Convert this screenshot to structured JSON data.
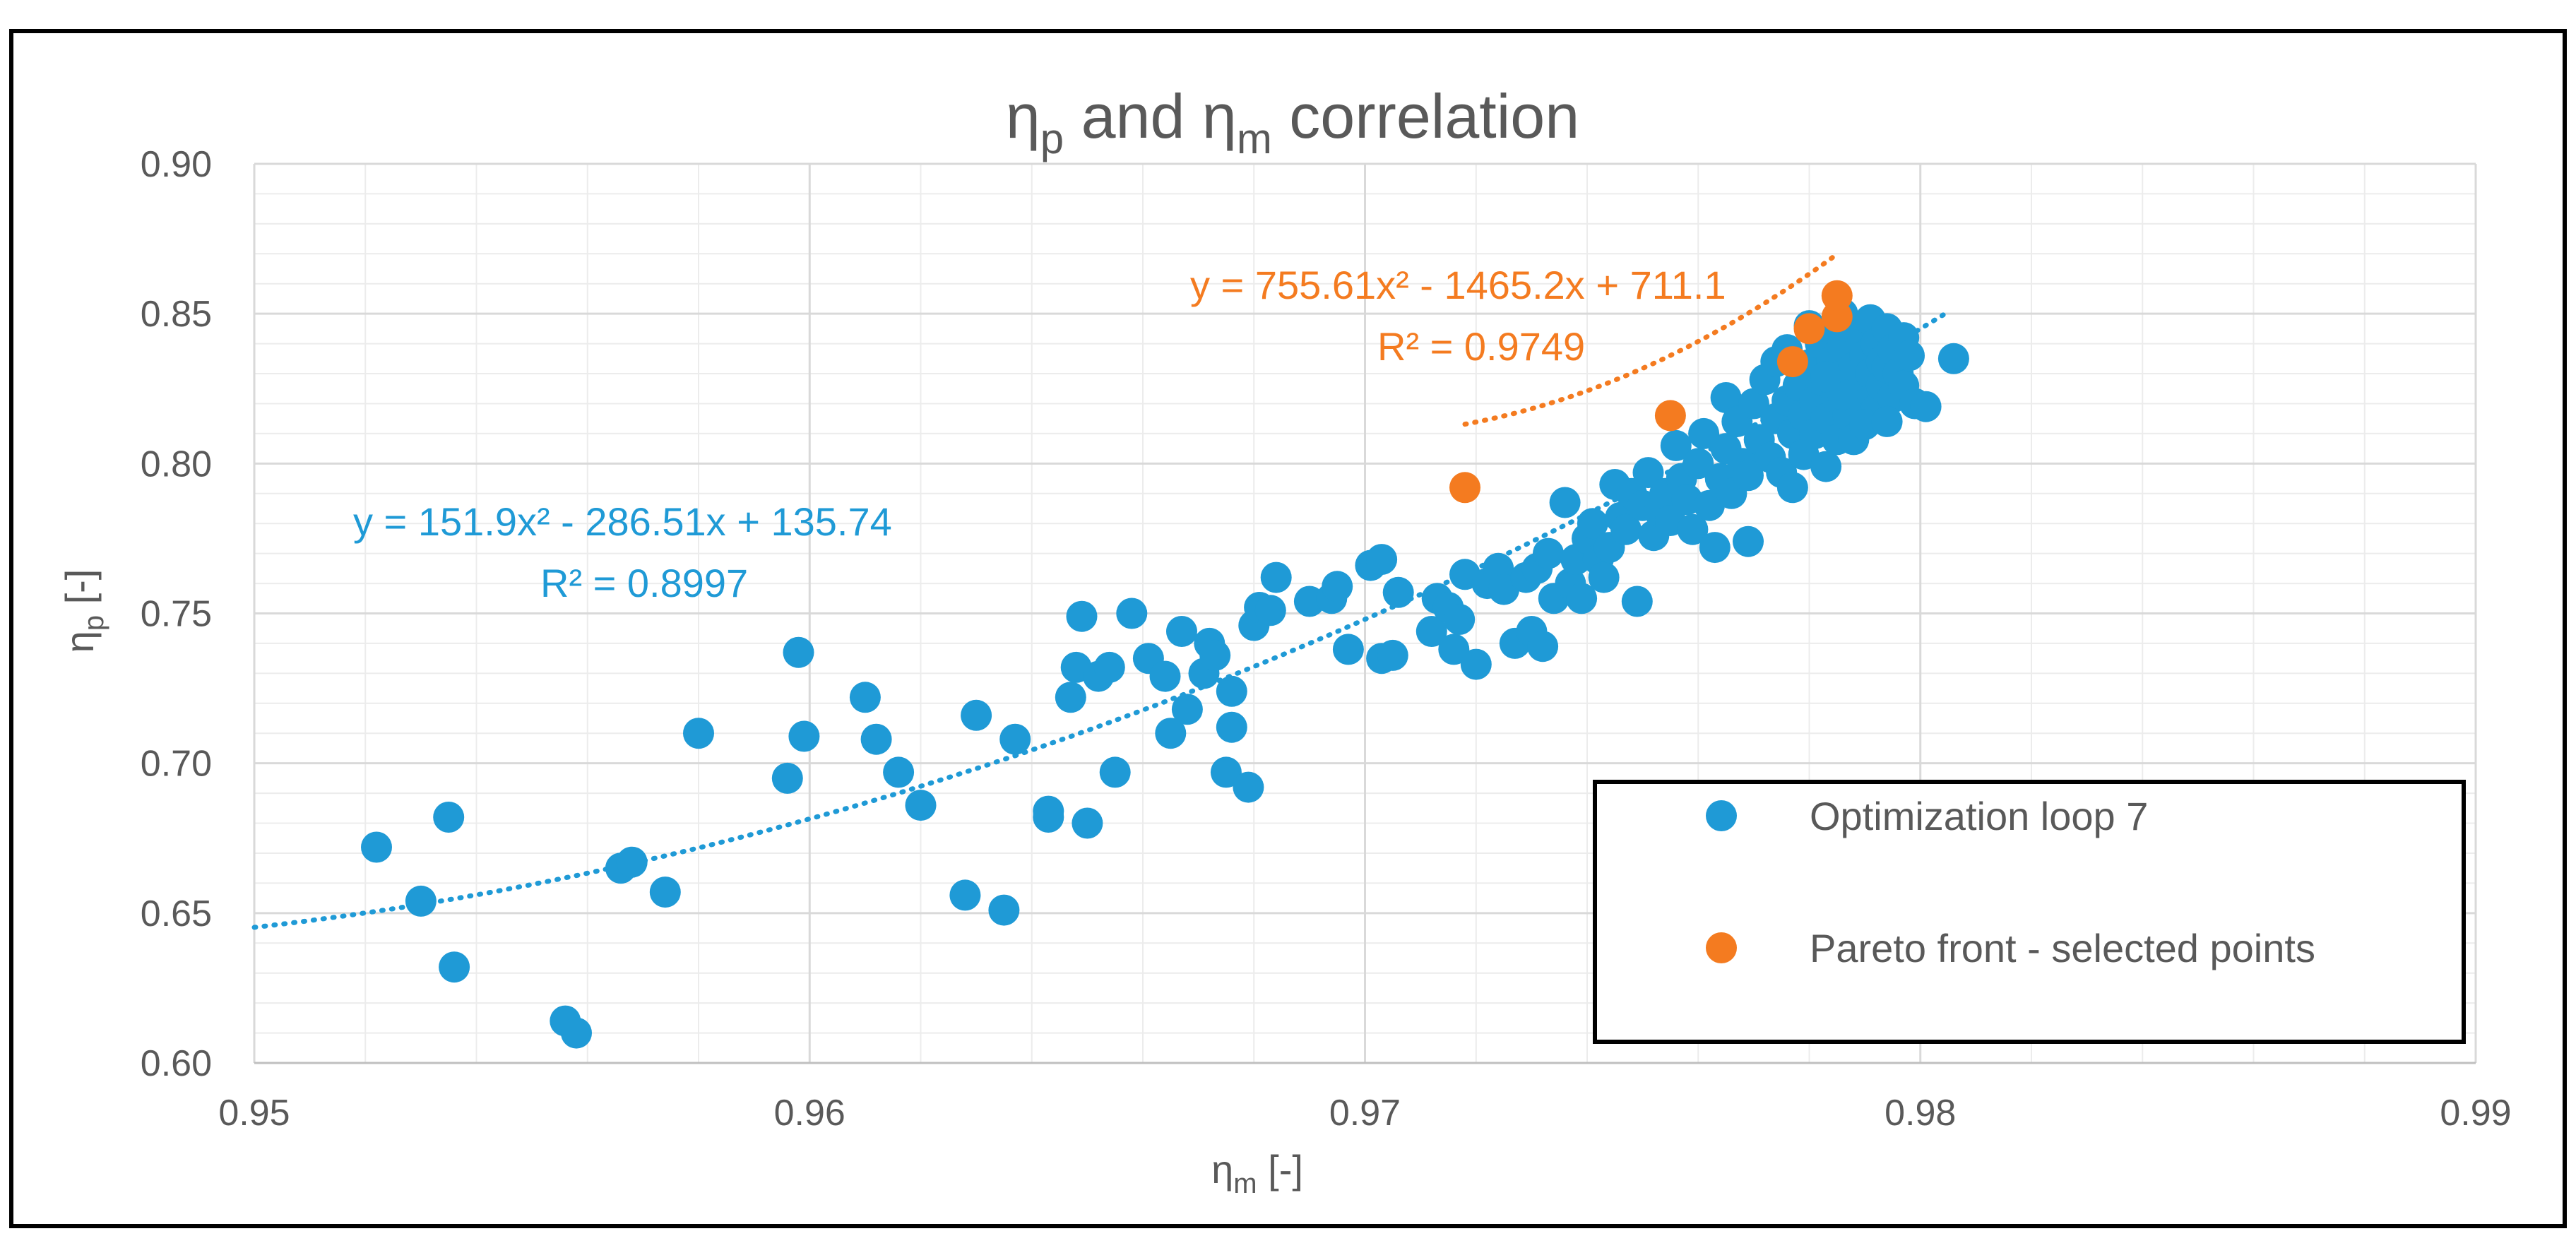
{
  "colors": {
    "blue": "#1f9ad6",
    "orange": "#f47b20",
    "grid_major": "#d9d9d9",
    "grid_minor": "#ececec",
    "text": "#595959"
  },
  "chart_data": {
    "type": "scatter",
    "title": "ηp and ηm correlation",
    "title_parts": {
      "a": "η",
      "a_sub": "p",
      "mid": " and ",
      "b": "η",
      "b_sub": "m",
      "end": " correlation"
    },
    "xlabel": "ηm [-]",
    "xlabel_parts": {
      "sym": "η",
      "sub": "m",
      "unit": " [-]"
    },
    "ylabel": "ηp [-]",
    "ylabel_parts": {
      "sym": "η",
      "sub": "p",
      "unit": " [-]"
    },
    "xlim": [
      0.95,
      0.99
    ],
    "ylim": [
      0.6,
      0.9
    ],
    "x_ticks": [
      "0.95",
      "0.96",
      "0.97",
      "0.98",
      "0.99"
    ],
    "y_ticks": [
      "0.60",
      "0.65",
      "0.70",
      "0.75",
      "0.80",
      "0.85",
      "0.90"
    ],
    "grid": true,
    "legend_position": "bottom-right",
    "series": [
      {
        "name": "Optimization loop 7",
        "color": "#1f9ad6",
        "trendline": {
          "type": "poly2",
          "coef": [
            151.9,
            -286.51,
            135.74
          ],
          "equation": "y = 151.9x² - 286.51x + 135.74",
          "r2": "R² = 0.8997",
          "x_range": [
            0.95,
            0.9805
          ]
        },
        "points": [
          [
            0.9522,
            0.672
          ],
          [
            0.953,
            0.654
          ],
          [
            0.9535,
            0.682
          ],
          [
            0.9536,
            0.632
          ],
          [
            0.9556,
            0.614
          ],
          [
            0.9558,
            0.61
          ],
          [
            0.9566,
            0.665
          ],
          [
            0.9568,
            0.667
          ],
          [
            0.9574,
            0.657
          ],
          [
            0.958,
            0.71
          ],
          [
            0.9596,
            0.695
          ],
          [
            0.9598,
            0.737
          ],
          [
            0.9599,
            0.709
          ],
          [
            0.961,
            0.722
          ],
          [
            0.9612,
            0.708
          ],
          [
            0.9616,
            0.697
          ],
          [
            0.962,
            0.686
          ],
          [
            0.9628,
            0.656
          ],
          [
            0.963,
            0.716
          ],
          [
            0.9635,
            0.651
          ],
          [
            0.9637,
            0.708
          ],
          [
            0.9643,
            0.682
          ],
          [
            0.9643,
            0.684
          ],
          [
            0.9647,
            0.722
          ],
          [
            0.9648,
            0.732
          ],
          [
            0.9649,
            0.749
          ],
          [
            0.965,
            0.68
          ],
          [
            0.9652,
            0.729
          ],
          [
            0.9654,
            0.732
          ],
          [
            0.9655,
            0.697
          ],
          [
            0.9658,
            0.75
          ],
          [
            0.9661,
            0.735
          ],
          [
            0.9664,
            0.729
          ],
          [
            0.9665,
            0.71
          ],
          [
            0.9667,
            0.744
          ],
          [
            0.9668,
            0.718
          ],
          [
            0.9671,
            0.73
          ],
          [
            0.9672,
            0.74
          ],
          [
            0.9673,
            0.736
          ],
          [
            0.9675,
            0.697
          ],
          [
            0.9676,
            0.712
          ],
          [
            0.9676,
            0.724
          ],
          [
            0.9679,
            0.692
          ],
          [
            0.968,
            0.746
          ],
          [
            0.9681,
            0.752
          ],
          [
            0.9683,
            0.751
          ],
          [
            0.9684,
            0.762
          ],
          [
            0.969,
            0.754
          ],
          [
            0.9694,
            0.755
          ],
          [
            0.9695,
            0.759
          ],
          [
            0.9697,
            0.738
          ],
          [
            0.9701,
            0.766
          ],
          [
            0.9703,
            0.768
          ],
          [
            0.9703,
            0.735
          ],
          [
            0.9705,
            0.736
          ],
          [
            0.9706,
            0.757
          ],
          [
            0.9712,
            0.744
          ],
          [
            0.9713,
            0.755
          ],
          [
            0.9715,
            0.752
          ],
          [
            0.9716,
            0.738
          ],
          [
            0.9717,
            0.748
          ],
          [
            0.9718,
            0.763
          ],
          [
            0.972,
            0.733
          ],
          [
            0.9722,
            0.76
          ],
          [
            0.9724,
            0.765
          ],
          [
            0.9725,
            0.758
          ],
          [
            0.9727,
            0.74
          ],
          [
            0.9729,
            0.762
          ],
          [
            0.973,
            0.744
          ],
          [
            0.9731,
            0.765
          ],
          [
            0.9732,
            0.739
          ],
          [
            0.9733,
            0.77
          ],
          [
            0.9734,
            0.755
          ],
          [
            0.9736,
            0.787
          ],
          [
            0.9737,
            0.76
          ],
          [
            0.9738,
            0.768
          ],
          [
            0.9739,
            0.755
          ],
          [
            0.974,
            0.775
          ],
          [
            0.9741,
            0.78
          ],
          [
            0.9742,
            0.768
          ],
          [
            0.9743,
            0.762
          ],
          [
            0.9744,
            0.772
          ],
          [
            0.9745,
            0.793
          ],
          [
            0.9746,
            0.782
          ],
          [
            0.9747,
            0.778
          ],
          [
            0.9748,
            0.79
          ],
          [
            0.9749,
            0.754
          ],
          [
            0.975,
            0.786
          ],
          [
            0.9751,
            0.797
          ],
          [
            0.9752,
            0.776
          ],
          [
            0.9753,
            0.784
          ],
          [
            0.9754,
            0.79
          ],
          [
            0.9755,
            0.781
          ],
          [
            0.9756,
            0.806
          ],
          [
            0.9757,
            0.795
          ],
          [
            0.9758,
            0.788
          ],
          [
            0.9759,
            0.778
          ],
          [
            0.976,
            0.8
          ],
          [
            0.9761,
            0.81
          ],
          [
            0.9762,
            0.786
          ],
          [
            0.9763,
            0.772
          ],
          [
            0.9764,
            0.795
          ],
          [
            0.9765,
            0.822
          ],
          [
            0.9765,
            0.805
          ],
          [
            0.9766,
            0.79
          ],
          [
            0.9767,
            0.814
          ],
          [
            0.9768,
            0.8
          ],
          [
            0.9769,
            0.796
          ],
          [
            0.9769,
            0.774
          ],
          [
            0.977,
            0.82
          ],
          [
            0.9771,
            0.808
          ],
          [
            0.9772,
            0.828
          ],
          [
            0.9773,
            0.802
          ],
          [
            0.9774,
            0.815
          ],
          [
            0.9774,
            0.834
          ],
          [
            0.9775,
            0.797
          ],
          [
            0.9776,
            0.821
          ],
          [
            0.9776,
            0.838
          ],
          [
            0.9777,
            0.81
          ],
          [
            0.9777,
            0.792
          ],
          [
            0.9778,
            0.826
          ],
          [
            0.9779,
            0.816
          ],
          [
            0.9779,
            0.803
          ],
          [
            0.978,
            0.833
          ],
          [
            0.978,
            0.846
          ],
          [
            0.9781,
            0.821
          ],
          [
            0.9781,
            0.81
          ],
          [
            0.9782,
            0.84
          ],
          [
            0.9782,
            0.828
          ],
          [
            0.9783,
            0.799
          ],
          [
            0.9783,
            0.815
          ],
          [
            0.9784,
            0.845
          ],
          [
            0.9784,
            0.834
          ],
          [
            0.9785,
            0.822
          ],
          [
            0.9785,
            0.808
          ],
          [
            0.9786,
            0.85
          ],
          [
            0.9786,
            0.839
          ],
          [
            0.9787,
            0.827
          ],
          [
            0.9787,
            0.816
          ],
          [
            0.9788,
            0.845
          ],
          [
            0.9788,
            0.832
          ],
          [
            0.9789,
            0.82
          ],
          [
            0.9789,
            0.843
          ],
          [
            0.979,
            0.836
          ],
          [
            0.979,
            0.825
          ],
          [
            0.9791,
            0.848
          ],
          [
            0.9791,
            0.83
          ],
          [
            0.9792,
            0.818
          ],
          [
            0.9792,
            0.84
          ],
          [
            0.9793,
            0.834
          ],
          [
            0.9793,
            0.826
          ],
          [
            0.9794,
            0.845
          ],
          [
            0.9794,
            0.832
          ],
          [
            0.9795,
            0.838
          ],
          [
            0.9795,
            0.822
          ],
          [
            0.9796,
            0.83
          ],
          [
            0.9797,
            0.842
          ],
          [
            0.9797,
            0.826
          ],
          [
            0.9798,
            0.836
          ],
          [
            0.9799,
            0.82
          ],
          [
            0.9801,
            0.819
          ],
          [
            0.9806,
            0.835
          ],
          [
            0.9788,
            0.808
          ],
          [
            0.979,
            0.813
          ],
          [
            0.9794,
            0.814
          ],
          [
            0.9786,
            0.823
          ],
          [
            0.9783,
            0.829
          ]
        ]
      },
      {
        "name": "Pareto front - selected points",
        "color": "#f47b20",
        "trendline": {
          "type": "poly2",
          "coef": [
            755.61,
            -1465.2,
            711.1
          ],
          "equation": "y = 755.61x² - 1465.2x + 711.1",
          "r2": "R² = 0.9749",
          "x_range": [
            0.9718,
            0.9785
          ]
        },
        "points": [
          [
            0.9718,
            0.792
          ],
          [
            0.9755,
            0.816
          ],
          [
            0.9777,
            0.834
          ],
          [
            0.978,
            0.845
          ],
          [
            0.9785,
            0.849
          ],
          [
            0.9785,
            0.856
          ]
        ]
      }
    ]
  }
}
